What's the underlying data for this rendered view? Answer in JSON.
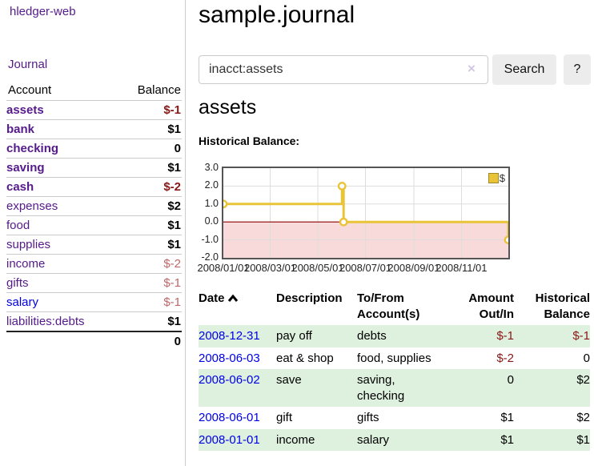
{
  "app": {
    "title": "hledger-web"
  },
  "sidebar": {
    "journal_link": "Journal",
    "accounts": {
      "header": {
        "account": "Account",
        "balance": "Balance"
      },
      "rows": [
        {
          "name": "assets",
          "balance": "$-1"
        },
        {
          "name": "bank",
          "balance": "$1"
        },
        {
          "name": "checking",
          "balance": "0"
        },
        {
          "name": "saving",
          "balance": "$1"
        },
        {
          "name": "cash",
          "balance": "$-2"
        },
        {
          "name": "expenses",
          "balance": "$2"
        },
        {
          "name": "food",
          "balance": "$1"
        },
        {
          "name": "supplies",
          "balance": "$1"
        },
        {
          "name": "income",
          "balance": "$-2"
        },
        {
          "name": "gifts",
          "balance": "$-1"
        },
        {
          "name": "salary",
          "balance": "$-1"
        },
        {
          "name": "liabilities:debts",
          "balance": "$1"
        }
      ],
      "total": "0"
    }
  },
  "main": {
    "title": "sample.journal",
    "search": {
      "value": "inacct:assets",
      "clear_icon": "×",
      "search_button": "Search",
      "help_button": "?"
    },
    "account_heading": "assets",
    "section_label": "Historical Balance:"
  },
  "chart_data": {
    "type": "line",
    "step": true,
    "title": "Historical Balance",
    "legend": "$",
    "x_min": "2008-01-01",
    "x_max": "2008-12-31",
    "ylim": [
      -2.0,
      3.0
    ],
    "yticks": [
      {
        "value": 3,
        "label": "3.0"
      },
      {
        "value": 2,
        "label": "2.0"
      },
      {
        "value": 1,
        "label": "1.0"
      },
      {
        "value": 0,
        "label": "0.0"
      },
      {
        "value": -1,
        "label": "-1.0"
      },
      {
        "value": -2,
        "label": "-2.0"
      }
    ],
    "xticks": [
      {
        "date": "2008-01-01",
        "label": "2008/01/01"
      },
      {
        "date": "2008-03-01",
        "label": "2008/03/01"
      },
      {
        "date": "2008-05-01",
        "label": "2008/05/01"
      },
      {
        "date": "2008-07-01",
        "label": "2008/07/01"
      },
      {
        "date": "2008-09-01",
        "label": "2008/09/01"
      },
      {
        "date": "2008-11-01",
        "label": "2008/11/01"
      }
    ],
    "points": [
      {
        "date": "2008-01-01",
        "value": 1.0
      },
      {
        "date": "2008-06-01",
        "value": 2.0
      },
      {
        "date": "2008-06-03",
        "value": 0.0
      },
      {
        "date": "2008-12-31",
        "value": -1.0
      }
    ],
    "colors": {
      "line": "#e9c338",
      "negative_area": "#f9dada",
      "zero_line": "#8b0000",
      "grid": "#ddd"
    }
  },
  "register": {
    "headers": {
      "date": "Date",
      "description": "Description",
      "tofrom": "To/From Account(s)",
      "amount": "Amount Out/In",
      "balance": "Historical Balance"
    },
    "rows": [
      {
        "date": "2008-12-31",
        "description": "pay off",
        "tofrom": "debts",
        "amount": "$-1",
        "balance": "$-1"
      },
      {
        "date": "2008-06-03",
        "description": "eat & shop",
        "tofrom": "food, supplies",
        "amount": "$-2",
        "balance": "0"
      },
      {
        "date": "2008-06-02",
        "description": "save",
        "tofrom": "saving, checking",
        "amount": "0",
        "balance": "$2"
      },
      {
        "date": "2008-06-01",
        "description": "gift",
        "tofrom": "gifts",
        "amount": "$1",
        "balance": "$2"
      },
      {
        "date": "2008-01-01",
        "description": "income",
        "tofrom": "salary",
        "amount": "$1",
        "balance": "$1"
      }
    ]
  },
  "colors": {
    "link_purple": "#551a8b",
    "link_blue": "#0000e6",
    "negative_strong": "#8b1717",
    "negative_soft": "#c06767",
    "row_green": "#def0de",
    "chart_gold": "#e9c338"
  }
}
